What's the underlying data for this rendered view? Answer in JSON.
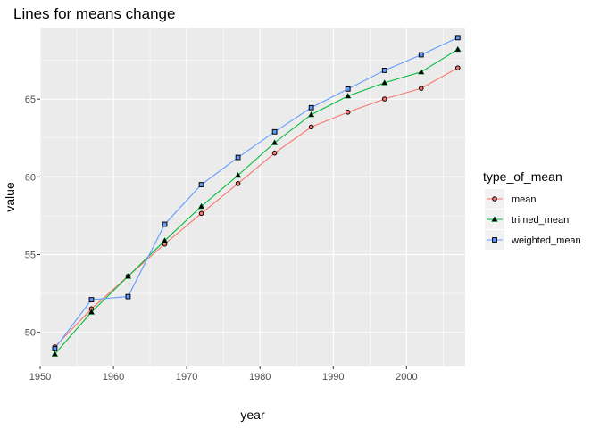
{
  "chart_data": {
    "type": "line",
    "title": "Lines for means change",
    "xlabel": "year",
    "ylabel": "value",
    "xlim": [
      1950,
      2008
    ],
    "ylim": [
      47.8,
      69.6
    ],
    "x_ticks": [
      1950,
      1960,
      1970,
      1980,
      1990,
      2000
    ],
    "y_ticks": [
      50,
      55,
      60,
      65
    ],
    "grid": true,
    "legend_position": "right",
    "legend_title": "type_of_mean",
    "x": [
      1952,
      1957,
      1962,
      1967,
      1972,
      1977,
      1982,
      1987,
      1992,
      1997,
      2002,
      2007
    ],
    "series": [
      {
        "name": "mean",
        "color": "#F8766D",
        "marker": "circle",
        "values": [
          49.06,
          51.51,
          53.61,
          55.68,
          57.65,
          59.57,
          61.53,
          63.21,
          64.16,
          65.01,
          65.69,
          67.01
        ]
      },
      {
        "name": "trimed_mean",
        "color": "#00BA38",
        "marker": "triangle",
        "values": [
          48.6,
          51.3,
          53.6,
          55.9,
          58.1,
          60.1,
          62.2,
          64.0,
          65.2,
          66.05,
          66.75,
          68.2
        ]
      },
      {
        "name": "weighted_mean",
        "color": "#619CFF",
        "marker": "square",
        "values": [
          48.95,
          52.1,
          52.3,
          56.95,
          59.5,
          61.25,
          62.9,
          64.45,
          65.65,
          66.85,
          67.85,
          68.95
        ]
      }
    ]
  }
}
